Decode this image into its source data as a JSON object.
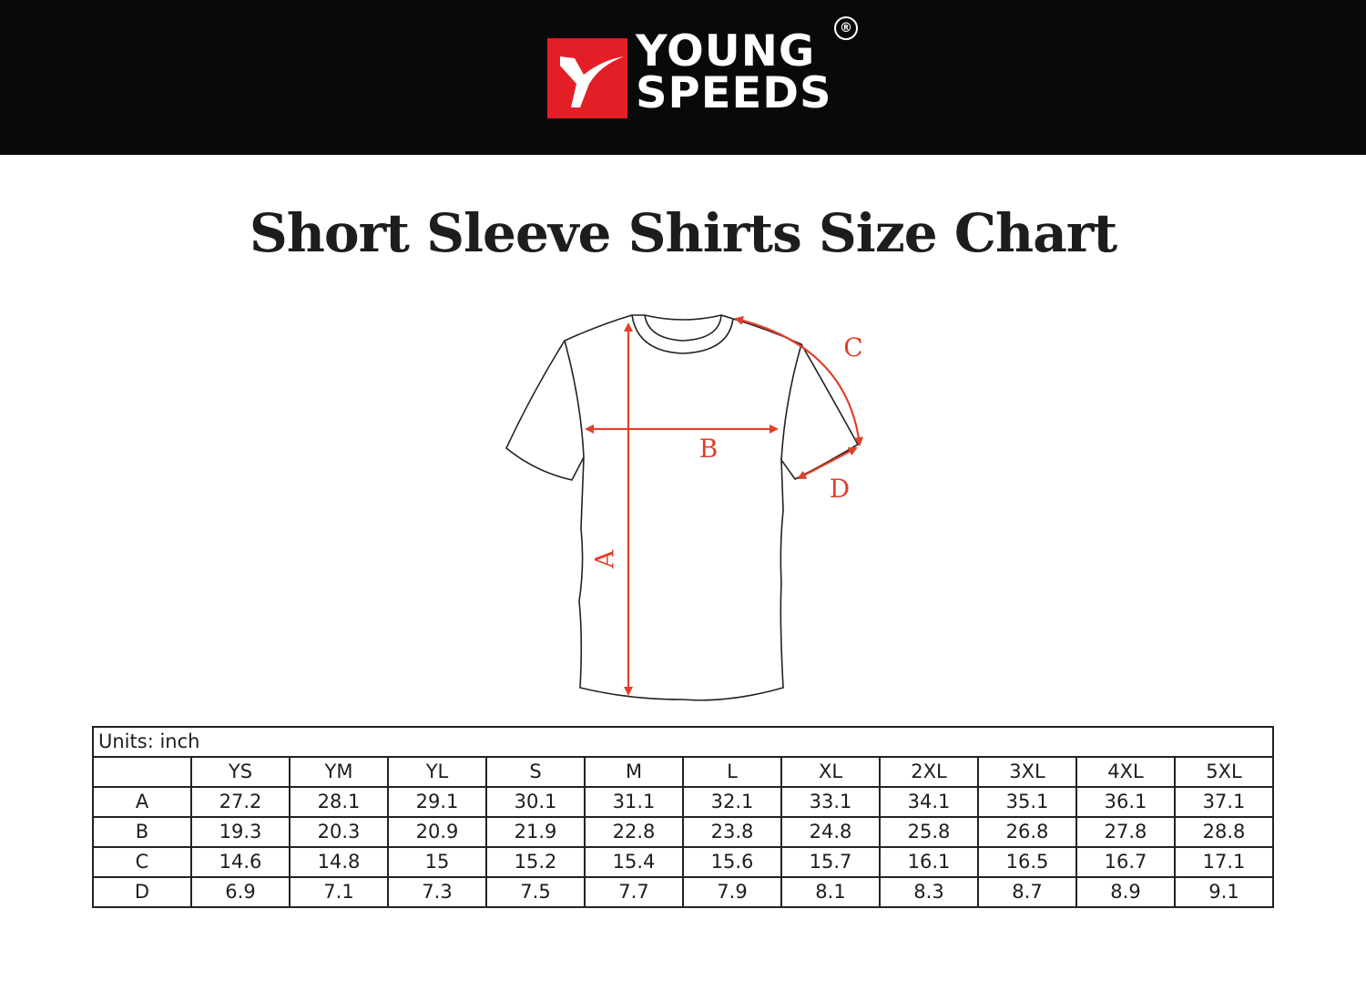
{
  "brand": {
    "name_line1": "YOUNG",
    "name_line2": "SPEEDS",
    "registered_mark": "®",
    "logo_color": "#e41e26"
  },
  "title": "Short Sleeve Shirts Size Chart",
  "diagram": {
    "labels": {
      "A": "A",
      "B": "B",
      "C": "C",
      "D": "D"
    },
    "arrow_color": "#e0402a"
  },
  "table": {
    "units": "Units: inch",
    "headers": [
      "",
      "YS",
      "YM",
      "YL",
      "S",
      "M",
      "L",
      "XL",
      "2XL",
      "3XL",
      "4XL",
      "5XL"
    ],
    "rows": [
      [
        "A",
        "27.2",
        "28.1",
        "29.1",
        "30.1",
        "31.1",
        "32.1",
        "33.1",
        "34.1",
        "35.1",
        "36.1",
        "37.1"
      ],
      [
        "B",
        "19.3",
        "20.3",
        "20.9",
        "21.9",
        "22.8",
        "23.8",
        "24.8",
        "25.8",
        "26.8",
        "27.8",
        "28.8"
      ],
      [
        "C",
        "14.6",
        "14.8",
        "15",
        "15.2",
        "15.4",
        "15.6",
        "15.7",
        "16.1",
        "16.5",
        "16.7",
        "17.1"
      ],
      [
        "D",
        "6.9",
        "7.1",
        "7.3",
        "7.5",
        "7.7",
        "7.9",
        "8.1",
        "8.3",
        "8.7",
        "8.9",
        "9.1"
      ]
    ]
  }
}
